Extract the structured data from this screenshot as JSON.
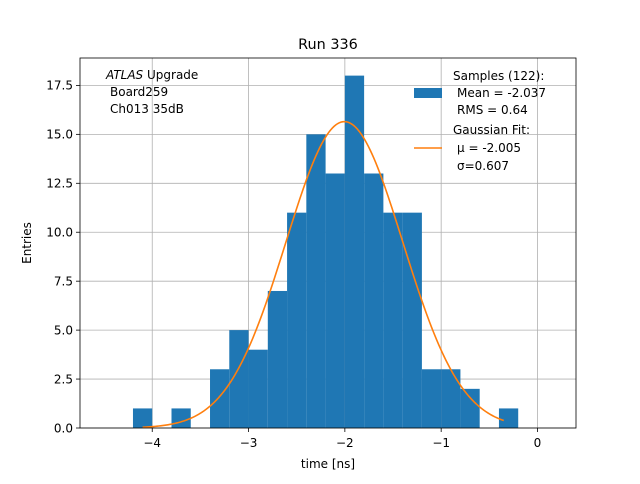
{
  "chart_data": {
    "type": "bar",
    "title": "Run 336",
    "xlabel": "time [ns]",
    "ylabel": "Entries",
    "xlim": [
      -4.75,
      0.4
    ],
    "ylim": [
      0,
      18.9
    ],
    "xticks": [
      -4,
      -3,
      -2,
      -1,
      0
    ],
    "xtick_labels": [
      "−4",
      "−3",
      "−2",
      "−1",
      "0"
    ],
    "yticks": [
      0,
      2.5,
      5,
      7.5,
      10,
      12.5,
      15,
      17.5
    ],
    "ytick_labels": [
      "0.0",
      "2.5",
      "5.0",
      "7.5",
      "10.0",
      "12.5",
      "15.0",
      "17.5"
    ],
    "grid": true,
    "histogram": {
      "bin_edges": [
        -4.2,
        -4.0,
        -3.8,
        -3.6,
        -3.4,
        -3.2,
        -3.0,
        -2.8,
        -2.6,
        -2.4,
        -2.2,
        -2.0,
        -1.8,
        -1.6,
        -1.4,
        -1.2,
        -1.0,
        -0.8,
        -0.6,
        -0.4,
        -0.2
      ],
      "counts": [
        1,
        0,
        1,
        0,
        3,
        5,
        4,
        7,
        11,
        15,
        13,
        18,
        13,
        11,
        11,
        3,
        3,
        2,
        0,
        1
      ],
      "color": "#1f77b4"
    },
    "fit": {
      "type": "gaussian",
      "mu": -2.005,
      "sigma": 0.607,
      "amplitude": 15.65,
      "x_range": [
        -4.1,
        -0.35
      ],
      "color": "#ff7f0e"
    },
    "annotation": {
      "line1_italic": "ATLAS",
      "line1_rest": " Upgrade",
      "line2": "Board259",
      "line3": "Ch013 35dB"
    },
    "legend": {
      "placement": "top-right",
      "samples_title": "Samples (122):",
      "samples_mean": "Mean = -2.037",
      "samples_rms": "RMS = 0.64",
      "fit_title": "Gaussian Fit:",
      "fit_mu": "μ = -2.005",
      "fit_sigma": "σ=0.607"
    }
  }
}
